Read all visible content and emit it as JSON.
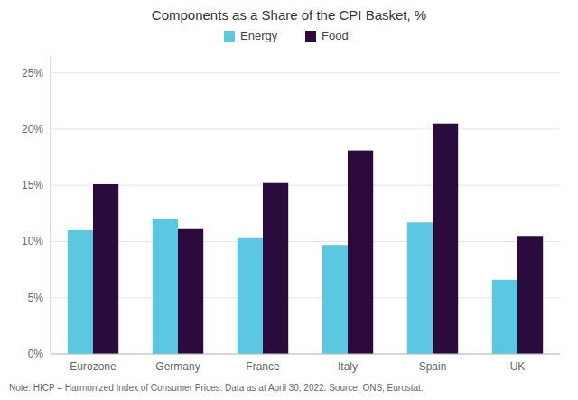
{
  "chart_data": {
    "type": "bar",
    "title": "Components as a Share of the CPI Basket, %",
    "categories": [
      "Eurozone",
      "Germany",
      "France",
      "Italy",
      "Spain",
      "UK"
    ],
    "series": [
      {
        "name": "Energy",
        "color": "#5BC8E2",
        "values": [
          11.0,
          12.0,
          10.3,
          9.7,
          11.7,
          6.6
        ]
      },
      {
        "name": "Food",
        "color": "#2B0A3D",
        "values": [
          15.1,
          11.1,
          15.2,
          18.1,
          20.5,
          10.5
        ]
      }
    ],
    "ylim": [
      0,
      26.5
    ],
    "yticks": [
      {
        "value": 0,
        "label": "0%"
      },
      {
        "value": 5,
        "label": "5%"
      },
      {
        "value": 10,
        "label": "10%"
      },
      {
        "value": 15,
        "label": "15%"
      },
      {
        "value": 20,
        "label": "20%"
      },
      {
        "value": 25,
        "label": "25%"
      }
    ],
    "grid": true,
    "legend": "top",
    "annotations": [
      "Note: HICP = Harmonized Index of Consumer Prices. Data as at April 30, 2022. Source: ONS, Eurostat."
    ]
  }
}
